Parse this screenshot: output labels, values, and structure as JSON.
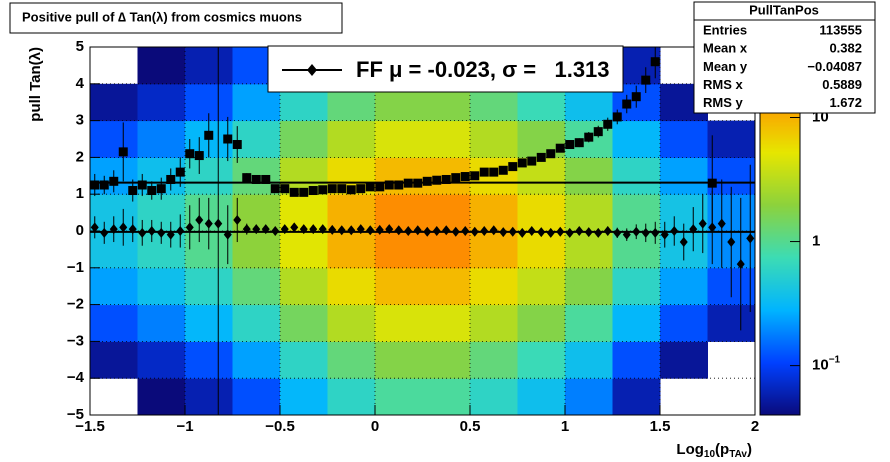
{
  "chart_data": {
    "type": "profile2d",
    "title": "Positive pull of ∆ Tan(λ) from cosmics muons",
    "y_label": "pull Tan(λ)",
    "x_label": {
      "text": "Log",
      "sub": "10",
      "text2": "(p",
      "sub2": "TAv",
      "text3": ")"
    },
    "xlim": [
      -1.5,
      2
    ],
    "ylim": [
      -5,
      5
    ],
    "xticks": [
      {
        "value": -1.5,
        "label": "−1.5"
      },
      {
        "value": -1,
        "label": "−1"
      },
      {
        "value": -0.5,
        "label": "−0.5"
      },
      0,
      0.5,
      1,
      1.5,
      2
    ],
    "yticks": [
      {
        "value": -5,
        "label": "−5"
      },
      {
        "value": -4,
        "label": "−4"
      },
      {
        "value": -3,
        "label": "−3"
      },
      {
        "value": -2,
        "label": "−2"
      },
      {
        "value": -1,
        "label": "−1"
      },
      0,
      1,
      2,
      3,
      4,
      5
    ],
    "grid": true,
    "x": [
      -1.475,
      -1.425,
      -1.375,
      -1.325,
      -1.275,
      -1.225,
      -1.175,
      -1.125,
      -1.075,
      -1.025,
      -0.975,
      -0.925,
      -0.875,
      -0.825,
      -0.775,
      -0.725,
      -0.675,
      -0.625,
      -0.575,
      -0.525,
      -0.475,
      -0.425,
      -0.375,
      -0.325,
      -0.275,
      -0.225,
      -0.175,
      -0.125,
      -0.075,
      -0.025,
      0.025,
      0.075,
      0.125,
      0.175,
      0.225,
      0.275,
      0.325,
      0.375,
      0.425,
      0.475,
      0.525,
      0.575,
      0.625,
      0.675,
      0.725,
      0.775,
      0.825,
      0.875,
      0.925,
      0.975,
      1.025,
      1.075,
      1.125,
      1.175,
      1.225,
      1.275,
      1.325,
      1.375,
      1.425,
      1.475,
      1.525,
      1.575,
      1.625,
      1.675,
      1.725,
      1.775,
      1.825,
      1.875,
      1.925,
      1.975
    ],
    "series": [
      {
        "marker": "square",
        "color": "#000000",
        "values": [
          1.25,
          1.25,
          1.35,
          2.15,
          1.1,
          1.25,
          1.1,
          1.15,
          1.4,
          1.6,
          2.1,
          2.05,
          2.6,
          null,
          2.5,
          2.35,
          1.45,
          1.4,
          1.4,
          1.15,
          1.15,
          1.05,
          1.05,
          1.1,
          1.12,
          1.15,
          1.15,
          1.12,
          1.15,
          1.2,
          1.2,
          1.25,
          1.25,
          1.3,
          1.3,
          1.35,
          1.38,
          1.4,
          1.45,
          1.48,
          1.5,
          1.6,
          1.6,
          1.65,
          1.75,
          1.85,
          1.9,
          2.0,
          2.1,
          2.25,
          2.35,
          2.4,
          2.55,
          2.7,
          2.9,
          3.1,
          3.45,
          3.65,
          4.1,
          4.6,
          null,
          null,
          null,
          null,
          null,
          1.3,
          null,
          null,
          null,
          null
        ],
        "errors": [
          0.3,
          0.25,
          0.3,
          0.8,
          0.3,
          0.3,
          0.25,
          0.3,
          0.3,
          0.4,
          0.4,
          0.5,
          0.6,
          null,
          0.6,
          0.5,
          0.12,
          0.1,
          0.08,
          0.06,
          0.05,
          0.04,
          0.04,
          0.03,
          0.03,
          0.03,
          0.03,
          0.03,
          0.03,
          0.03,
          0.03,
          0.03,
          0.03,
          0.03,
          0.03,
          0.03,
          0.03,
          0.03,
          0.03,
          0.03,
          0.03,
          0.03,
          0.03,
          0.04,
          0.04,
          0.05,
          0.05,
          0.06,
          0.07,
          0.08,
          0.1,
          0.12,
          0.14,
          0.16,
          0.18,
          0.2,
          0.25,
          0.3,
          0.35,
          0.45,
          null,
          null,
          null,
          null,
          null,
          1.3,
          null,
          null,
          null,
          null
        ]
      },
      {
        "marker": "diamond",
        "color": "#000000",
        "values": [
          0.1,
          -0.05,
          0.05,
          0.1,
          0.05,
          -0.05,
          0,
          -0.05,
          -0.1,
          0,
          0.1,
          0.3,
          0.2,
          0.2,
          -0.1,
          0.3,
          0.05,
          0.05,
          0.05,
          0,
          0.05,
          0.1,
          0.05,
          0.05,
          0.05,
          0.03,
          0.02,
          0.02,
          0.05,
          0.02,
          0.03,
          0.05,
          0.02,
          0,
          0.02,
          -0.02,
          0,
          0.02,
          -0.02,
          0,
          -0.02,
          0,
          0.02,
          -0.03,
          -0.02,
          -0.05,
          0,
          -0.03,
          -0.05,
          -0.02,
          -0.05,
          0,
          -0.03,
          -0.05,
          0,
          -0.05,
          -0.1,
          -0.02,
          -0.05,
          -0.05,
          -0.1,
          0,
          -0.3,
          0.05,
          0.2,
          0.1,
          0.2,
          -0.3,
          -0.9,
          -0.2
        ],
        "errors": [
          0.3,
          0.3,
          0.35,
          0.5,
          0.35,
          0.35,
          0.3,
          0.3,
          0.35,
          0.45,
          0.6,
          0.6,
          0.7,
          6,
          0.8,
          0.6,
          0.15,
          0.12,
          0.1,
          0.08,
          0.06,
          0.05,
          0.04,
          0.04,
          0.03,
          0.03,
          0.03,
          0.03,
          0.03,
          0.03,
          0.03,
          0.03,
          0.03,
          0.03,
          0.03,
          0.03,
          0.03,
          0.03,
          0.03,
          0.03,
          0.03,
          0.03,
          0.03,
          0.03,
          0.03,
          0.04,
          0.04,
          0.05,
          0.05,
          0.06,
          0.07,
          0.08,
          0.09,
          0.1,
          0.12,
          0.14,
          0.17,
          0.2,
          0.25,
          0.3,
          0.35,
          0.4,
          0.5,
          0.6,
          0.8,
          1.0,
          1.2,
          1.5,
          1.8,
          2.0
        ]
      }
    ],
    "fit_mu": -0.023,
    "fit_sigma": 1.313,
    "legend": {
      "label": "FF μ = -0.023, σ =   1.313"
    },
    "heatmap": {
      "x_edges": [
        -1.5,
        -1.25,
        -1,
        -0.75,
        -0.5,
        -0.25,
        0,
        0.25,
        0.5,
        0.75,
        1,
        1.25,
        1.5,
        1.75,
        2
      ],
      "y_edges": [
        -5,
        -4,
        -3,
        -2,
        -1,
        0,
        1,
        2,
        3,
        4,
        5
      ],
      "values": [
        [
          0.02,
          0.04,
          0.06,
          0.12,
          0.3,
          0.6,
          0.9,
          0.9,
          0.6,
          0.36,
          0.18,
          0.06,
          0.02,
          0.01
        ],
        [
          0.05,
          0.07,
          0.12,
          0.24,
          0.6,
          1.2,
          1.8,
          1.8,
          1.2,
          0.72,
          0.36,
          0.12,
          0.05,
          0.02
        ],
        [
          0.12,
          0.18,
          0.3,
          0.6,
          1.5,
          3,
          4.5,
          4.5,
          3,
          1.8,
          0.9,
          0.3,
          0.12,
          0.06
        ],
        [
          0.24,
          0.36,
          0.6,
          1.2,
          3,
          6,
          9,
          9,
          6,
          3.6,
          1.8,
          0.6,
          0.24,
          0.12
        ],
        [
          0.4,
          0.6,
          1,
          2,
          5,
          10,
          15,
          15,
          10,
          6,
          3,
          1,
          0.4,
          0.2
        ],
        [
          0.4,
          0.6,
          1,
          2,
          5,
          10,
          15,
          15,
          10,
          6,
          3,
          1,
          0.4,
          0.2
        ],
        [
          0.24,
          0.36,
          0.6,
          1.2,
          3,
          6,
          9,
          9,
          6,
          3.6,
          1.8,
          0.6,
          0.24,
          0.12
        ],
        [
          0.12,
          0.18,
          0.3,
          0.6,
          1.5,
          3,
          4.5,
          4.5,
          3,
          1.8,
          0.9,
          0.3,
          0.12,
          0.06
        ],
        [
          0.05,
          0.07,
          0.12,
          0.24,
          0.6,
          1.2,
          1.8,
          1.8,
          1.2,
          0.72,
          0.36,
          0.12,
          0.05,
          0.02
        ],
        [
          0.02,
          0.04,
          0.06,
          0.12,
          0.3,
          0.6,
          0.9,
          0.9,
          0.6,
          0.36,
          0.18,
          0.06,
          0.02,
          0.01
        ]
      ],
      "zlim": [
        0.04,
        37
      ],
      "zscale": "log",
      "zticks": [
        {
          "value": 0.1,
          "label": "10",
          "exponent": "−1"
        },
        1,
        10
      ],
      "palette": [
        "#0a0a7a",
        "#0040ff",
        "#00b4ff",
        "#3cdcb4",
        "#8cd23c",
        "#e6e600",
        "#ff9600",
        "#e8190c"
      ]
    },
    "stats": {
      "title": "PullTanPos",
      "rows": [
        [
          "Entries",
          "113555"
        ],
        [
          "Mean x",
          "0.382"
        ],
        [
          "Mean y",
          "−0.04087"
        ],
        [
          "RMS x",
          "0.5889"
        ],
        [
          "RMS y",
          "1.672"
        ]
      ]
    }
  }
}
